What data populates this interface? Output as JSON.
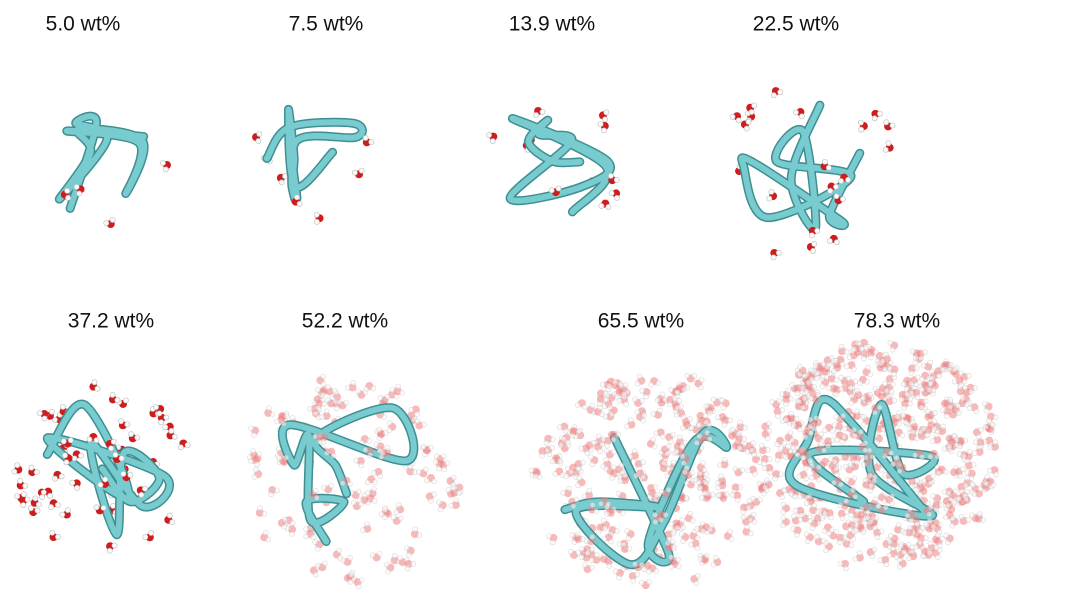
{
  "panels": [
    {
      "label": "5.0 wt%"
    },
    {
      "label": "7.5 wt%"
    },
    {
      "label": "13.9 wt%"
    },
    {
      "label": "22.5 wt%"
    },
    {
      "label": "37.2 wt%"
    },
    {
      "label": "52.2 wt%"
    },
    {
      "label": "65.5 wt%"
    },
    {
      "label": "78.3 wt%"
    }
  ]
}
